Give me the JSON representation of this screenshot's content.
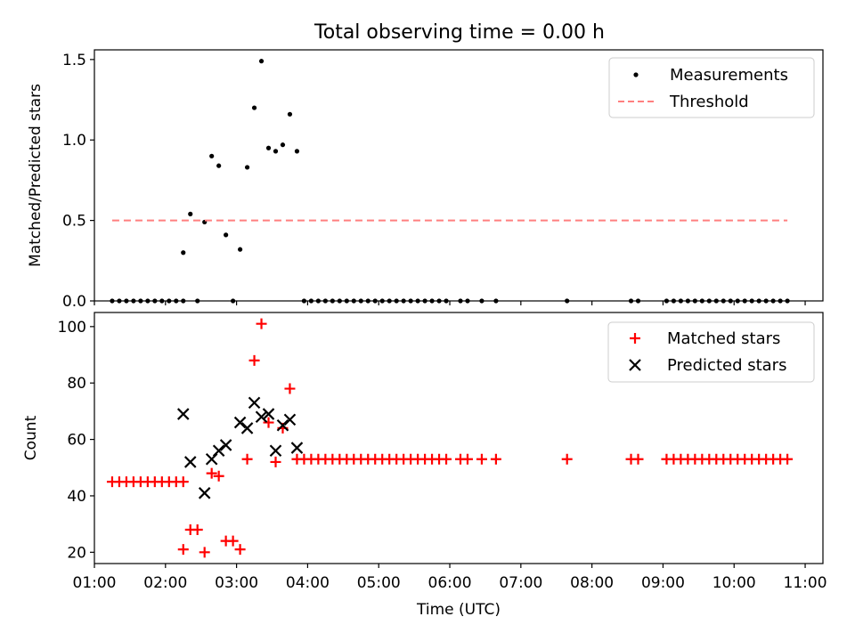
{
  "chart_data": [
    {
      "type": "scatter",
      "title": "Total observing time = 0.00 h",
      "xlabel": "",
      "ylabel": "Matched/Predicted stars",
      "xlim": [
        "01:00",
        "11:15"
      ],
      "ylim": [
        0,
        1.56
      ],
      "yticks": [
        0.0,
        0.5,
        1.0,
        1.5
      ],
      "ytick_labels": [
        "0.0",
        "0.5",
        "1.0",
        "1.5"
      ],
      "legend": {
        "placement": "top-right",
        "items": [
          {
            "label": "Measurements",
            "marker": "dot",
            "color": "#000000"
          },
          {
            "label": "Threshold",
            "marker": "dashed-line",
            "color": "#ff7f7f"
          }
        ]
      },
      "series": [
        {
          "name": "Measurements",
          "color": "#000000",
          "points": [
            [
              "01:15",
              0
            ],
            [
              "01:21",
              0
            ],
            [
              "01:27",
              0
            ],
            [
              "01:33",
              0
            ],
            [
              "01:39",
              0
            ],
            [
              "01:45",
              0
            ],
            [
              "01:51",
              0
            ],
            [
              "01:57",
              0
            ],
            [
              "02:03",
              0
            ],
            [
              "02:09",
              0
            ],
            [
              "02:15",
              0
            ],
            [
              "02:15",
              0.3
            ],
            [
              "02:21",
              0.54
            ],
            [
              "02:27",
              0
            ],
            [
              "02:33",
              0.49
            ],
            [
              "02:39",
              0.9
            ],
            [
              "02:45",
              0.84
            ],
            [
              "02:51",
              0.41
            ],
            [
              "02:57",
              0
            ],
            [
              "03:03",
              0.32
            ],
            [
              "03:09",
              0.83
            ],
            [
              "03:15",
              1.2
            ],
            [
              "03:21",
              1.49
            ],
            [
              "03:27",
              0.95
            ],
            [
              "03:33",
              0.93
            ],
            [
              "03:39",
              0.97
            ],
            [
              "03:45",
              1.16
            ],
            [
              "03:51",
              0.93
            ],
            [
              "03:57",
              0
            ],
            [
              "04:03",
              0
            ],
            [
              "04:09",
              0
            ],
            [
              "04:15",
              0
            ],
            [
              "04:21",
              0
            ],
            [
              "04:27",
              0
            ],
            [
              "04:33",
              0
            ],
            [
              "04:39",
              0
            ],
            [
              "04:45",
              0
            ],
            [
              "04:51",
              0
            ],
            [
              "04:57",
              0
            ],
            [
              "05:03",
              0
            ],
            [
              "05:09",
              0
            ],
            [
              "05:15",
              0
            ],
            [
              "05:21",
              0
            ],
            [
              "05:27",
              0
            ],
            [
              "05:33",
              0
            ],
            [
              "05:39",
              0
            ],
            [
              "05:45",
              0
            ],
            [
              "05:51",
              0
            ],
            [
              "05:57",
              0
            ],
            [
              "06:09",
              0
            ],
            [
              "06:15",
              0
            ],
            [
              "06:27",
              0
            ],
            [
              "06:39",
              0
            ],
            [
              "07:39",
              0
            ],
            [
              "08:33",
              0
            ],
            [
              "08:39",
              0
            ],
            [
              "09:03",
              0
            ],
            [
              "09:09",
              0
            ],
            [
              "09:15",
              0
            ],
            [
              "09:21",
              0
            ],
            [
              "09:27",
              0
            ],
            [
              "09:33",
              0
            ],
            [
              "09:39",
              0
            ],
            [
              "09:45",
              0
            ],
            [
              "09:51",
              0
            ],
            [
              "09:57",
              0
            ],
            [
              "10:03",
              0
            ],
            [
              "10:09",
              0
            ],
            [
              "10:15",
              0
            ],
            [
              "10:21",
              0
            ],
            [
              "10:27",
              0
            ],
            [
              "10:33",
              0
            ],
            [
              "10:39",
              0
            ],
            [
              "10:45",
              0
            ]
          ]
        },
        {
          "name": "Threshold",
          "color": "#ff7f7f",
          "points": [
            [
              "01:15",
              0.5
            ],
            [
              "10:45",
              0.5
            ]
          ]
        }
      ]
    },
    {
      "type": "scatter",
      "title": "",
      "xlabel": "Time (UTC)",
      "ylabel": "Count",
      "xlim": [
        "01:00",
        "11:15"
      ],
      "ylim": [
        16,
        105
      ],
      "yticks": [
        20,
        40,
        60,
        80,
        100
      ],
      "ytick_labels": [
        "20",
        "40",
        "60",
        "80",
        "100"
      ],
      "xticks": [
        "01:00",
        "02:00",
        "03:00",
        "04:00",
        "05:00",
        "06:00",
        "07:00",
        "08:00",
        "09:00",
        "10:00",
        "11:00"
      ],
      "xtick_labels": [
        "01:00",
        "02:00",
        "03:00",
        "04:00",
        "05:00",
        "06:00",
        "07:00",
        "08:00",
        "09:00",
        "10:00",
        "11:00"
      ],
      "legend": {
        "placement": "top-right",
        "items": [
          {
            "label": "Matched stars",
            "marker": "plus",
            "color": "#ff0000"
          },
          {
            "label": "Predicted stars",
            "marker": "x",
            "color": "#000000"
          }
        ]
      },
      "series": [
        {
          "name": "Matched stars",
          "color": "#ff0000",
          "points": [
            [
              "01:15",
              45
            ],
            [
              "01:21",
              45
            ],
            [
              "01:27",
              45
            ],
            [
              "01:33",
              45
            ],
            [
              "01:39",
              45
            ],
            [
              "01:45",
              45
            ],
            [
              "01:51",
              45
            ],
            [
              "01:57",
              45
            ],
            [
              "02:03",
              45
            ],
            [
              "02:09",
              45
            ],
            [
              "02:15",
              45
            ],
            [
              "02:15",
              21
            ],
            [
              "02:21",
              28
            ],
            [
              "02:27",
              28
            ],
            [
              "02:33",
              20
            ],
            [
              "02:39",
              48
            ],
            [
              "02:45",
              47
            ],
            [
              "02:51",
              24
            ],
            [
              "02:57",
              24
            ],
            [
              "03:03",
              21
            ],
            [
              "03:09",
              53
            ],
            [
              "03:15",
              88
            ],
            [
              "03:21",
              101
            ],
            [
              "03:27",
              66
            ],
            [
              "03:33",
              52
            ],
            [
              "03:39",
              64
            ],
            [
              "03:45",
              78
            ],
            [
              "03:51",
              53
            ],
            [
              "03:57",
              53
            ],
            [
              "04:03",
              53
            ],
            [
              "04:09",
              53
            ],
            [
              "04:15",
              53
            ],
            [
              "04:21",
              53
            ],
            [
              "04:27",
              53
            ],
            [
              "04:33",
              53
            ],
            [
              "04:39",
              53
            ],
            [
              "04:45",
              53
            ],
            [
              "04:51",
              53
            ],
            [
              "04:57",
              53
            ],
            [
              "05:03",
              53
            ],
            [
              "05:09",
              53
            ],
            [
              "05:15",
              53
            ],
            [
              "05:21",
              53
            ],
            [
              "05:27",
              53
            ],
            [
              "05:33",
              53
            ],
            [
              "05:39",
              53
            ],
            [
              "05:45",
              53
            ],
            [
              "05:51",
              53
            ],
            [
              "05:57",
              53
            ],
            [
              "06:09",
              53
            ],
            [
              "06:15",
              53
            ],
            [
              "06:27",
              53
            ],
            [
              "06:39",
              53
            ],
            [
              "07:39",
              53
            ],
            [
              "08:33",
              53
            ],
            [
              "08:39",
              53
            ],
            [
              "09:03",
              53
            ],
            [
              "09:09",
              53
            ],
            [
              "09:15",
              53
            ],
            [
              "09:21",
              53
            ],
            [
              "09:27",
              53
            ],
            [
              "09:33",
              53
            ],
            [
              "09:39",
              53
            ],
            [
              "09:45",
              53
            ],
            [
              "09:51",
              53
            ],
            [
              "09:57",
              53
            ],
            [
              "10:03",
              53
            ],
            [
              "10:09",
              53
            ],
            [
              "10:15",
              53
            ],
            [
              "10:21",
              53
            ],
            [
              "10:27",
              53
            ],
            [
              "10:33",
              53
            ],
            [
              "10:39",
              53
            ],
            [
              "10:45",
              53
            ]
          ]
        },
        {
          "name": "Predicted stars",
          "color": "#000000",
          "points": [
            [
              "02:15",
              69
            ],
            [
              "02:21",
              52
            ],
            [
              "02:33",
              41
            ],
            [
              "02:39",
              53
            ],
            [
              "02:45",
              56
            ],
            [
              "02:51",
              58
            ],
            [
              "03:03",
              66
            ],
            [
              "03:09",
              64
            ],
            [
              "03:15",
              73
            ],
            [
              "03:21",
              68
            ],
            [
              "03:27",
              69
            ],
            [
              "03:33",
              56
            ],
            [
              "03:39",
              65
            ],
            [
              "03:45",
              67
            ],
            [
              "03:51",
              57
            ]
          ]
        }
      ]
    }
  ]
}
